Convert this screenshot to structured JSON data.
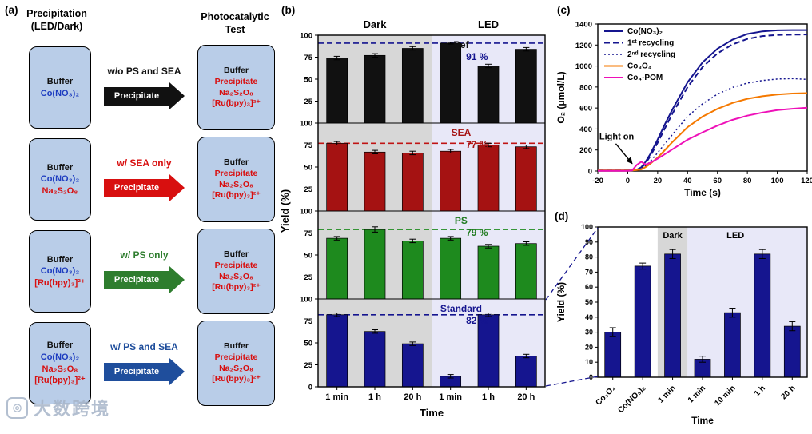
{
  "watermark": {
    "text": "大数跨境"
  },
  "panel_a": {
    "label": "(a)",
    "header_left": [
      "Precipitation",
      "(LED/Dark)"
    ],
    "header_right": [
      "Photocatalytic",
      "Test"
    ],
    "arrow_text": "Precipitate",
    "rows": [
      {
        "arrow_label": "w/o PS and SEA",
        "color": "#111111",
        "left_box": [
          {
            "text": "Buffer",
            "color": "#111111"
          },
          {
            "text": "Co(NO₃)₂",
            "color": "#1d3cc0"
          }
        ],
        "right_box": [
          {
            "text": "Buffer",
            "color": "#111111"
          },
          {
            "text": "Precipitate",
            "color": "#d80f0f"
          },
          {
            "text": "Na₂S₂O₈",
            "color": "#d80f0f"
          },
          {
            "text": "[Ru(bpy)₃]²⁺",
            "color": "#d80f0f"
          }
        ]
      },
      {
        "arrow_label": "w/ SEA only",
        "color": "#d80f0f",
        "left_box": [
          {
            "text": "Buffer",
            "color": "#111111"
          },
          {
            "text": "Co(NO₃)₂",
            "color": "#1d3cc0"
          },
          {
            "text": "Na₂S₂O₈",
            "color": "#d80f0f"
          }
        ],
        "right_box": [
          {
            "text": "Buffer",
            "color": "#111111"
          },
          {
            "text": "Precipitate",
            "color": "#d80f0f"
          },
          {
            "text": "Na₂S₂O₈",
            "color": "#d80f0f"
          },
          {
            "text": "[Ru(bpy)₃]²⁺",
            "color": "#d80f0f"
          }
        ]
      },
      {
        "arrow_label": "w/ PS only",
        "color": "#2e7d2e",
        "left_box": [
          {
            "text": "Buffer",
            "color": "#111111"
          },
          {
            "text": "Co(NO₃)₂",
            "color": "#1d3cc0"
          },
          {
            "text": "[Ru(bpy)₃]²⁺",
            "color": "#d80f0f"
          }
        ],
        "right_box": [
          {
            "text": "Buffer",
            "color": "#111111"
          },
          {
            "text": "Precipitate",
            "color": "#d80f0f"
          },
          {
            "text": "Na₂S₂O₈",
            "color": "#d80f0f"
          },
          {
            "text": "[Ru(bpy)₃]²⁺",
            "color": "#d80f0f"
          }
        ]
      },
      {
        "arrow_label": "w/ PS and SEA",
        "color": "#1f4e9c",
        "left_box": [
          {
            "text": "Buffer",
            "color": "#111111"
          },
          {
            "text": "Co(NO₃)₂",
            "color": "#1d3cc0"
          },
          {
            "text": "Na₂S₂O₈",
            "color": "#d80f0f"
          },
          {
            "text": "[Ru(bpy)₃]²⁺",
            "color": "#d80f0f"
          }
        ],
        "right_box": [
          {
            "text": "Buffer",
            "color": "#111111"
          },
          {
            "text": "Precipitate",
            "color": "#d80f0f"
          },
          {
            "text": "Na₂S₂O₈",
            "color": "#d80f0f"
          },
          {
            "text": "[Ru(bpy)₃]²⁺",
            "color": "#d80f0f"
          }
        ]
      }
    ]
  },
  "chart_data": [
    {
      "id": "b",
      "label": "(b)",
      "type": "bar",
      "ylabel": "Yield (%)",
      "xlabel": "Time",
      "region_labels": {
        "dark": "Dark",
        "led": "LED"
      },
      "categories": [
        "1 min",
        "1 h",
        "20 h",
        "1 min",
        "1 h",
        "20 h"
      ],
      "ylim": [
        0,
        100
      ],
      "yticks": [
        0,
        25,
        50,
        75,
        100
      ],
      "dark_bg": "#d7d7d7",
      "led_bg": "#e8e8f8",
      "subpanels": [
        {
          "name": "Ref",
          "ref_label": "91 %",
          "ref_value": 91,
          "bar_color": "#111111",
          "line_color": "#15158f",
          "name_color": "#111111",
          "pct_color": "#15158f",
          "values": [
            74,
            77,
            85,
            91,
            65,
            84
          ],
          "errors": [
            2,
            2,
            2,
            1,
            2,
            2
          ]
        },
        {
          "name": "SEA",
          "ref_label": "77 %",
          "ref_value": 77,
          "bar_color": "#a51212",
          "line_color": "#c01414",
          "name_color": "#a51212",
          "pct_color": "#a51212",
          "values": [
            77,
            67,
            66,
            68,
            75,
            73
          ],
          "errors": [
            2,
            2,
            2,
            2,
            2,
            2
          ]
        },
        {
          "name": "PS",
          "ref_label": "79 %",
          "ref_value": 79,
          "bar_color": "#1e8a1e",
          "line_color": "#1e8a1e",
          "name_color": "#1e7a1e",
          "pct_color": "#1e7a1e",
          "values": [
            69,
            79,
            66,
            69,
            60,
            63
          ],
          "errors": [
            2,
            3,
            2,
            2,
            2,
            2
          ]
        },
        {
          "name": "Standard",
          "ref_label": "82 %",
          "ref_value": 82,
          "bar_color": "#15158f",
          "line_color": "#15158f",
          "name_color": "#15158f",
          "pct_color": "#15158f",
          "values": [
            82,
            63,
            49,
            12,
            82,
            35
          ],
          "errors": [
            2,
            2,
            2,
            2,
            2,
            2
          ]
        }
      ]
    },
    {
      "id": "c",
      "label": "(c)",
      "type": "line",
      "xlabel": "Time (s)",
      "ylabel": "O₂ (μmol/L)",
      "xlim": [
        -20,
        120
      ],
      "ylim": [
        0,
        1400
      ],
      "xticks": [
        -20,
        0,
        20,
        40,
        60,
        80,
        100,
        120
      ],
      "yticks": [
        0,
        200,
        400,
        600,
        800,
        1000,
        1200,
        1400
      ],
      "annotation": "Light on",
      "x": [
        -20,
        -10,
        0,
        3,
        6,
        9,
        12,
        15,
        20,
        25,
        30,
        40,
        50,
        60,
        70,
        80,
        90,
        100,
        110,
        120
      ],
      "series": [
        {
          "name": "Co(NO₃)₂",
          "color": "#15158f",
          "dash": "solid",
          "y": [
            5,
            5,
            5,
            6,
            12,
            35,
            90,
            160,
            300,
            450,
            590,
            845,
            1035,
            1165,
            1250,
            1305,
            1330,
            1340,
            1342,
            1342
          ]
        },
        {
          "name": "1ˢᵗ recycling",
          "color": "#15158f",
          "dash": "dashed",
          "y": [
            5,
            5,
            5,
            6,
            10,
            28,
            75,
            140,
            270,
            410,
            550,
            800,
            990,
            1120,
            1205,
            1258,
            1285,
            1296,
            1299,
            1300
          ]
        },
        {
          "name": "2ⁿᵈ recycling",
          "color": "#15158f",
          "dash": "dotted",
          "y": [
            5,
            5,
            5,
            6,
            9,
            22,
            50,
            90,
            175,
            262,
            350,
            520,
            640,
            732,
            796,
            838,
            862,
            876,
            880,
            872
          ]
        },
        {
          "name": "Co₃O₄",
          "color": "#f57900",
          "dash": "solid",
          "y": [
            5,
            5,
            5,
            6,
            9,
            16,
            38,
            68,
            128,
            202,
            278,
            418,
            518,
            592,
            648,
            688,
            712,
            728,
            738,
            742
          ]
        },
        {
          "name": "Co₄-POM",
          "color": "#ee10b8",
          "dash": "solid",
          "y": [
            2,
            2,
            2,
            6,
            58,
            88,
            62,
            78,
            118,
            162,
            208,
            298,
            368,
            432,
            487,
            527,
            557,
            580,
            593,
            603
          ]
        }
      ]
    },
    {
      "id": "d",
      "label": "(d)",
      "type": "bar",
      "ylabel": "Yield (%)",
      "xlabel": "Time",
      "region_labels": {
        "dark": "Dark",
        "led": "LED"
      },
      "categories": [
        "Co₃O₄",
        "Co(NO₃)₂",
        "1 min",
        "1 min",
        "10 min",
        "1 h",
        "20 h"
      ],
      "values": [
        30,
        74,
        82,
        12,
        43,
        82,
        34
      ],
      "errors": [
        3,
        2,
        3,
        2,
        3,
        3,
        3
      ],
      "bar_color": "#15158f",
      "ylim": [
        0,
        100
      ],
      "yticks": [
        0,
        10,
        20,
        30,
        40,
        50,
        60,
        70,
        80,
        90,
        100
      ],
      "dark_bg": "#d7d7d7",
      "led_bg": "#e8e8f8"
    }
  ]
}
